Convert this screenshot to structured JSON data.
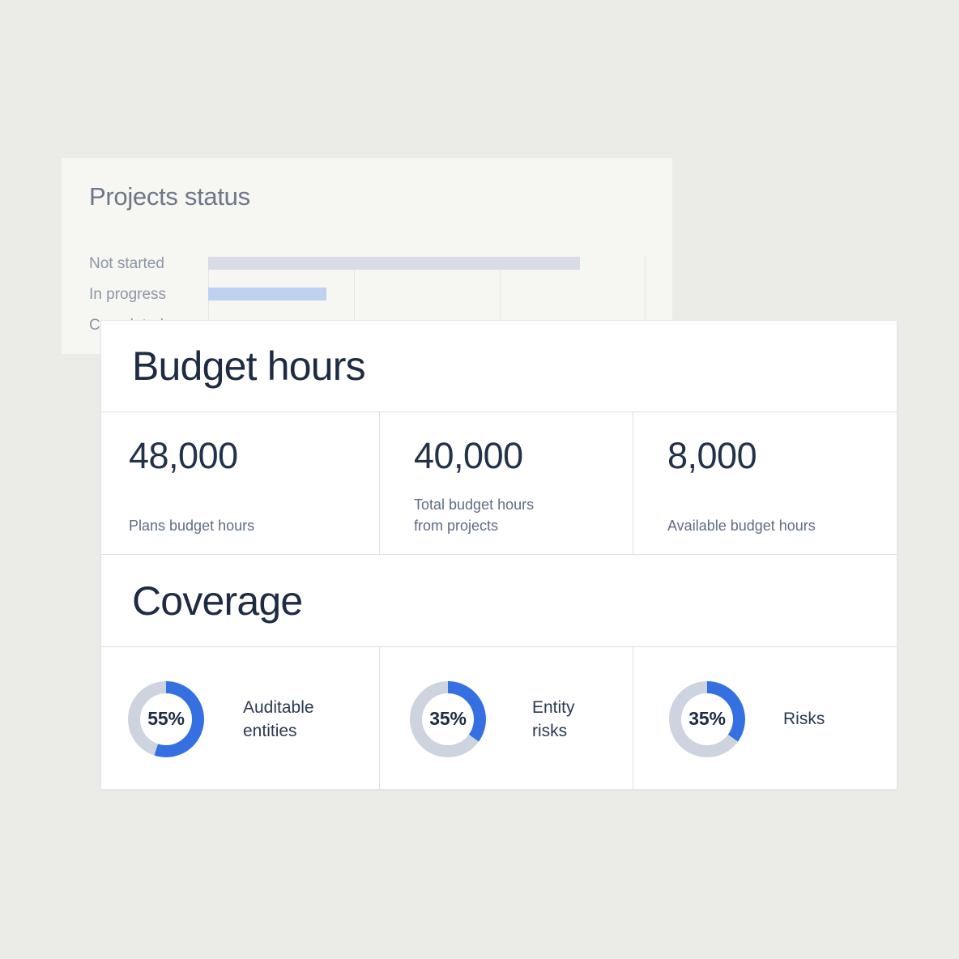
{
  "colors": {
    "page_bg": "#ebebe7",
    "bg_card": "#f6f6f3",
    "fg_card": "#ffffff",
    "divider": "#dbe1ea",
    "donut_fill": "#3470e2",
    "donut_track": "#cdd4df",
    "bar_not_started": "#d8dce4",
    "bar_in_progress": "#bdd2ee",
    "title_dark": "#1e2b42",
    "title_gray": "#6d7787",
    "label_gray": "#8d95a5",
    "stat_label_gray": "#5f6d83"
  },
  "projects_status_card": {
    "title": "Projects status",
    "rows": [
      {
        "label": "Not started",
        "value_pct": 85,
        "bar_color": "#d8dce4"
      },
      {
        "label": "In progress",
        "value_pct": 27,
        "bar_color": "#bdd2ee"
      },
      {
        "label": "Completed",
        "value_pct": null,
        "bar_color": null
      }
    ]
  },
  "dashboard_card": {
    "budget_hours": {
      "title": "Budget hours",
      "stats": [
        {
          "value": "48,000",
          "label": "Plans budget hours"
        },
        {
          "value": "40,000",
          "label": "Total budget hours\nfrom projects"
        },
        {
          "value": "8,000",
          "label": "Available budget hours"
        }
      ]
    },
    "coverage": {
      "title": "Coverage",
      "items": [
        {
          "percent": 55,
          "percent_label": "55%",
          "label": "Auditable\nentities"
        },
        {
          "percent": 35,
          "percent_label": "35%",
          "label": "Entity\nrisks"
        },
        {
          "percent": 35,
          "percent_label": "35%",
          "label": "Risks"
        }
      ]
    }
  },
  "chart_data": [
    {
      "type": "bar",
      "orientation": "horizontal",
      "title": "Projects status",
      "categories": [
        "Not started",
        "In progress",
        "Completed"
      ],
      "values": [
        85,
        27,
        null
      ],
      "value_unit": "percent-of-axis (no tick labels visible; third bar hidden behind card)",
      "grid": true,
      "gridline_positions_pct": [
        0,
        33.3,
        66.7,
        100
      ]
    },
    {
      "type": "pie",
      "title": "Auditable entities",
      "categories": [
        "covered",
        "remaining"
      ],
      "values": [
        55,
        45
      ]
    },
    {
      "type": "pie",
      "title": "Entity risks",
      "categories": [
        "covered",
        "remaining"
      ],
      "values": [
        35,
        65
      ]
    },
    {
      "type": "pie",
      "title": "Risks",
      "categories": [
        "covered",
        "remaining"
      ],
      "values": [
        35,
        65
      ]
    }
  ]
}
